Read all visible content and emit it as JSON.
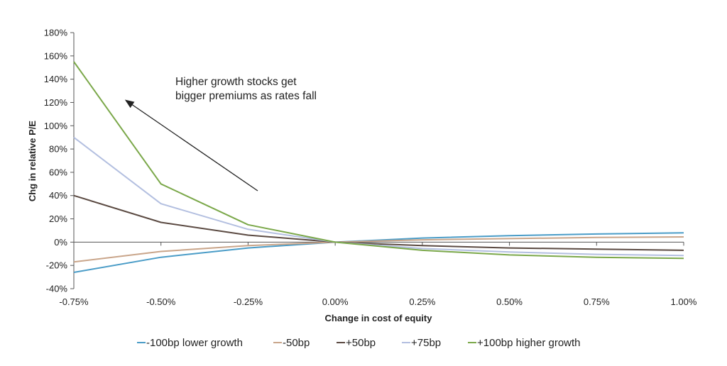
{
  "chart_data": {
    "type": "line",
    "title": "",
    "xlabel": "Change in cost of equity",
    "ylabel": "Chg in relative P/E",
    "x": [
      "-0.75%",
      "-0.50%",
      "-0.25%",
      "0.00%",
      "0.25%",
      "0.50%",
      "0.75%",
      "1.00%"
    ],
    "x_values": [
      -0.75,
      -0.5,
      -0.25,
      0,
      0.25,
      0.5,
      0.75,
      1.0
    ],
    "ylim": [
      -40,
      180
    ],
    "yticks": [
      -40,
      -20,
      0,
      20,
      40,
      60,
      80,
      100,
      120,
      140,
      160,
      180
    ],
    "ytick_labels": [
      "-40%",
      "-20%",
      "0%",
      "20%",
      "40%",
      "60%",
      "80%",
      "100%",
      "120%",
      "140%",
      "160%",
      "180%"
    ],
    "grid": false,
    "legend_position": "bottom",
    "series": [
      {
        "name": "-100bp lower growth",
        "color": "#4a9cc7",
        "values": [
          -26,
          -13,
          -5,
          0,
          3.5,
          5.5,
          7,
          8
        ]
      },
      {
        "name": "-50bp",
        "color": "#c9a58a",
        "values": [
          -17,
          -8,
          -3,
          0,
          2,
          3,
          4,
          4.5
        ]
      },
      {
        "name": "+50bp",
        "color": "#5b4a42",
        "values": [
          40,
          17,
          6,
          0,
          -3,
          -5,
          -6,
          -7
        ]
      },
      {
        "name": "+75bp",
        "color": "#b3bfe0",
        "values": [
          90,
          33,
          11,
          0,
          -5.5,
          -8.5,
          -10.5,
          -11.5
        ]
      },
      {
        "name": "+100bp higher growth",
        "color": "#7ba84a",
        "values": [
          155,
          50,
          15,
          0,
          -7,
          -11,
          -13,
          -14
        ]
      }
    ],
    "annotations": [
      {
        "text_line1": "Higher growth stocks get",
        "text_line2": "bigger premiums as rates fall",
        "arrow": "points up-left toward -0.75%"
      }
    ]
  }
}
